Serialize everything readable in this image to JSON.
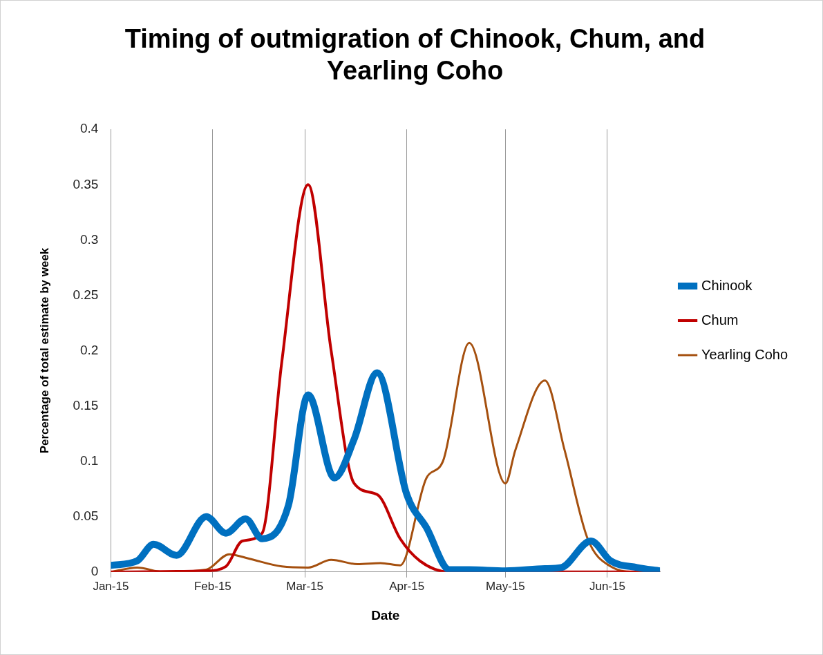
{
  "chart_data": {
    "type": "line",
    "title": "Timing of outmigration of Chinook, Chum, and Yearling Coho",
    "xlabel": "Date",
    "ylabel": "Percentage of total estimate by week",
    "xlim": [
      "2015-01-01",
      "2015-06-17"
    ],
    "xticks": [
      {
        "value": "2015-01-01",
        "label": "Jan-15"
      },
      {
        "value": "2015-02-01",
        "label": "Feb-15"
      },
      {
        "value": "2015-03-01",
        "label": "Mar-15"
      },
      {
        "value": "2015-04-01",
        "label": "Apr-15"
      },
      {
        "value": "2015-05-01",
        "label": "May-15"
      },
      {
        "value": "2015-06-01",
        "label": "Jun-15"
      }
    ],
    "ylim": [
      0,
      0.4
    ],
    "yticks": [
      0,
      0.05,
      0.1,
      0.15,
      0.2,
      0.25,
      0.3,
      0.35,
      0.4
    ],
    "grid": "x",
    "legend": "right",
    "marker": "none",
    "line_style": "solid",
    "series": [
      {
        "name": "Chinook",
        "color": "#0070c0",
        "x": [
          "2015-01-01",
          "2015-01-09",
          "2015-01-14",
          "2015-01-21",
          "2015-01-30",
          "2015-02-05",
          "2015-02-11",
          "2015-02-16",
          "2015-02-24",
          "2015-03-02",
          "2015-03-10",
          "2015-03-16",
          "2015-03-23",
          "2015-04-01",
          "2015-04-07",
          "2015-04-14",
          "2015-04-20",
          "2015-05-01",
          "2015-05-13",
          "2015-05-18",
          "2015-05-27",
          "2015-06-02",
          "2015-06-10",
          "2015-06-17"
        ],
        "values": [
          0.006,
          0.01,
          0.025,
          0.015,
          0.05,
          0.035,
          0.048,
          0.03,
          0.06,
          0.16,
          0.085,
          0.12,
          0.18,
          0.07,
          0.04,
          0.002,
          0.002,
          0.001,
          0.003,
          0.004,
          0.028,
          0.01,
          0.004,
          0.001
        ]
      },
      {
        "name": "Chum",
        "color": "#c00000",
        "x": [
          "2015-01-01",
          "2015-01-30",
          "2015-02-05",
          "2015-02-10",
          "2015-02-16",
          "2015-02-22",
          "2015-03-02",
          "2015-03-09",
          "2015-03-16",
          "2015-03-23",
          "2015-03-30",
          "2015-04-05",
          "2015-04-14",
          "2015-06-17"
        ],
        "values": [
          0,
          0.001,
          0.005,
          0.028,
          0.035,
          0.19,
          0.35,
          0.2,
          0.08,
          0.07,
          0.03,
          0.01,
          0,
          0
        ]
      },
      {
        "name": "Yearling Coho",
        "color": "#a5500f",
        "x": [
          "2015-01-01",
          "2015-01-09",
          "2015-01-17",
          "2015-01-30",
          "2015-02-06",
          "2015-02-12",
          "2015-02-22",
          "2015-03-02",
          "2015-03-09",
          "2015-03-17",
          "2015-03-24",
          "2015-03-30",
          "2015-04-07",
          "2015-04-12",
          "2015-04-20",
          "2015-05-01",
          "2015-05-04",
          "2015-05-13",
          "2015-05-19",
          "2015-05-26",
          "2015-06-02",
          "2015-06-10",
          "2015-06-17"
        ],
        "values": [
          0,
          0.004,
          0,
          0.002,
          0.016,
          0.012,
          0.005,
          0.004,
          0.011,
          0.007,
          0.008,
          0.006,
          0.085,
          0.1,
          0.207,
          0.08,
          0.11,
          0.173,
          0.11,
          0.03,
          0.005,
          0,
          0
        ]
      }
    ]
  }
}
